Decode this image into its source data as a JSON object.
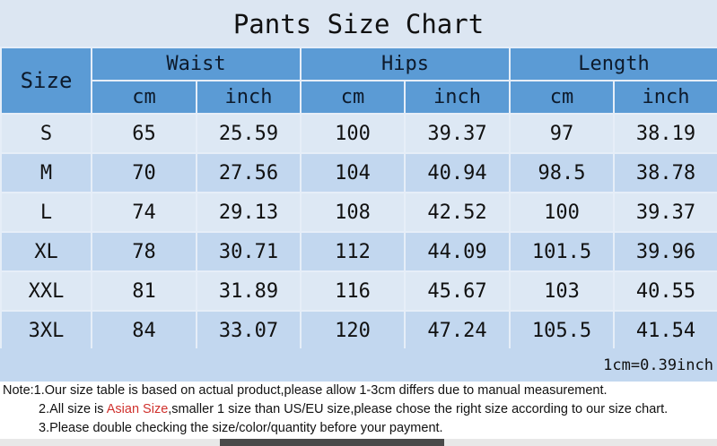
{
  "title": "Pants Size Chart",
  "header": {
    "size": "Size",
    "groups": [
      "Waist",
      "Hips",
      "Length"
    ],
    "units": [
      "cm",
      "inch",
      "cm",
      "inch",
      "cm",
      "inch"
    ]
  },
  "rows": [
    [
      "S",
      "65",
      "25.59",
      "100",
      "39.37",
      "97",
      "38.19"
    ],
    [
      "M",
      "70",
      "27.56",
      "104",
      "40.94",
      "98.5",
      "38.78"
    ],
    [
      "L",
      "74",
      "29.13",
      "108",
      "42.52",
      "100",
      "39.37"
    ],
    [
      "XL",
      "78",
      "30.71",
      "112",
      "44.09",
      "101.5",
      "39.96"
    ],
    [
      "XXL",
      "81",
      "31.89",
      "116",
      "45.67",
      "103",
      "40.55"
    ],
    [
      "3XL",
      "84",
      "33.07",
      "120",
      "47.24",
      "105.5",
      "41.54"
    ]
  ],
  "conversion": "1cm=0.39inch",
  "notes": {
    "line1": "Note:1.Our size table is based on actual product,please allow 1-3cm differs due to manual measurement.",
    "line2_pre": "2.All size is ",
    "line2_red": "Asian Size",
    "line2_post": ",smaller 1 size than US/EU size,please chose the right size according to our size chart.",
    "line3": "3.Please double checking the size/color/quantity before your payment."
  },
  "colors": {
    "header": "#5b9bd5",
    "row_light": "#dde8f4",
    "row_dark": "#c2d7ef",
    "highlight": "#d0312d"
  }
}
